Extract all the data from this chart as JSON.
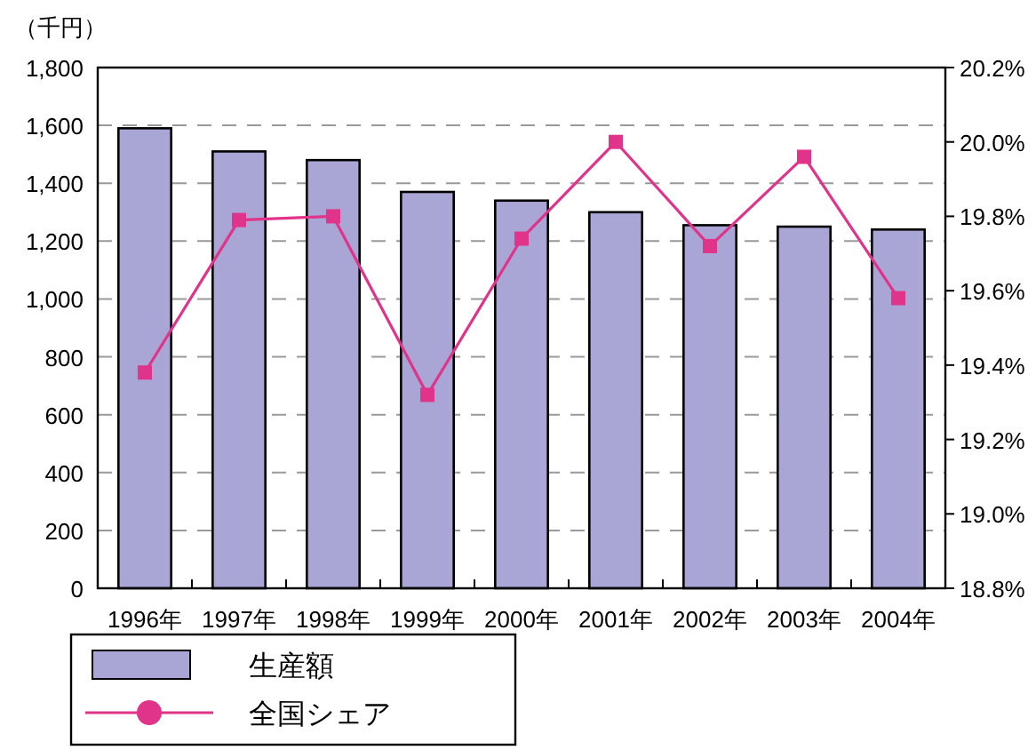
{
  "chart_data": {
    "type": "bar",
    "ylabel": "（千円）",
    "categories": [
      "1996年",
      "1997年",
      "1998年",
      "1999年",
      "2000年",
      "2001年",
      "2002年",
      "2003年",
      "2004年"
    ],
    "series": [
      {
        "name": "生産額",
        "color": "#a9a6d6",
        "values": [
          1590,
          1510,
          1480,
          1370,
          1340,
          1300,
          1255,
          1250,
          1240
        ]
      },
      {
        "name": "全国シェア",
        "type": "line",
        "axis": "y2",
        "color": "#e0338a",
        "marker": "square",
        "values": [
          19.38,
          19.79,
          19.8,
          19.32,
          19.74,
          20.0,
          19.72,
          19.96,
          19.58
        ]
      }
    ],
    "ylim": [
      0,
      1800
    ],
    "yticks": [
      {
        "value": 0,
        "label": "0"
      },
      {
        "value": 200,
        "label": "200"
      },
      {
        "value": 400,
        "label": "400"
      },
      {
        "value": 600,
        "label": "600"
      },
      {
        "value": 800,
        "label": "800"
      },
      {
        "value": 1000,
        "label": "1,000"
      },
      {
        "value": 1200,
        "label": "1,200"
      },
      {
        "value": 1400,
        "label": "1,400"
      },
      {
        "value": 1600,
        "label": "1,600"
      },
      {
        "value": 1800,
        "label": "1,800"
      }
    ],
    "y2lim": [
      18.8,
      20.2
    ],
    "y2ticks": [
      {
        "value": 18.8,
        "label": "18.8%"
      },
      {
        "value": 19.0,
        "label": "19.0%"
      },
      {
        "value": 19.2,
        "label": "19.2%"
      },
      {
        "value": 19.4,
        "label": "19.4%"
      },
      {
        "value": 19.6,
        "label": "19.6%"
      },
      {
        "value": 19.8,
        "label": "19.8%"
      },
      {
        "value": 20.0,
        "label": "20.0%"
      },
      {
        "value": 20.2,
        "label": "20.2%"
      }
    ],
    "grid": "y",
    "legend": "bottom left"
  }
}
